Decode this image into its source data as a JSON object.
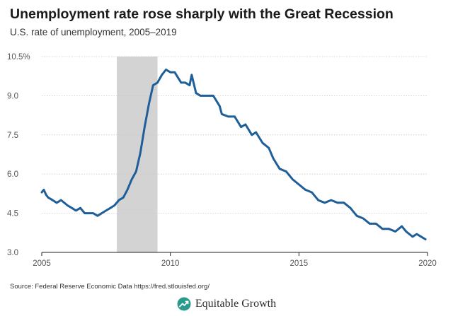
{
  "title": "Unemployment rate rose sharply with the Great Recession",
  "subtitle": "U.S. rate of unemployment, 2005–2019",
  "source": "Source: Federal Reserve Economic Data https://fred.stlouisfed.org/",
  "brand": {
    "name": "Equitable Growth",
    "icon": "growth-arrow-logo-icon",
    "color": "#2a9a8c"
  },
  "colors": {
    "line": "#1f5f99",
    "recession": "#d3d3d3",
    "grid": "#c9c9c9"
  },
  "chart_data": {
    "type": "line",
    "title": "Unemployment rate rose sharply with the Great Recession",
    "xlabel": "",
    "ylabel": "",
    "xlim": [
      2005,
      2020
    ],
    "ylim": [
      3.0,
      10.5
    ],
    "x_ticks": [
      2005,
      2010,
      2015,
      2020
    ],
    "y_ticks": [
      3.0,
      4.5,
      6.0,
      7.5,
      9.0,
      10.5
    ],
    "y_tick_labels": [
      "3.0",
      "4.5",
      "6.0",
      "7.5",
      "9.0",
      "10.5%"
    ],
    "grid": "horizontal",
    "recession_band": [
      2007.92,
      2009.5
    ],
    "series": [
      {
        "name": "",
        "x": [
          2005.0,
          2005.08,
          2005.17,
          2005.25,
          2005.42,
          2005.58,
          2005.75,
          2006.0,
          2006.17,
          2006.33,
          2006.5,
          2006.67,
          2006.83,
          2007.0,
          2007.17,
          2007.33,
          2007.5,
          2007.67,
          2007.83,
          2008.0,
          2008.17,
          2008.33,
          2008.5,
          2008.67,
          2008.83,
          2009.0,
          2009.17,
          2009.33,
          2009.5,
          2009.67,
          2009.83,
          2010.0,
          2010.17,
          2010.42,
          2010.58,
          2010.75,
          2010.83,
          2011.0,
          2011.17,
          2011.42,
          2011.67,
          2011.92,
          2012.0,
          2012.25,
          2012.5,
          2012.75,
          2012.92,
          2013.17,
          2013.33,
          2013.58,
          2013.83,
          2014.0,
          2014.25,
          2014.5,
          2014.75,
          2015.0,
          2015.25,
          2015.5,
          2015.75,
          2016.0,
          2016.25,
          2016.5,
          2016.75,
          2017.0,
          2017.25,
          2017.5,
          2017.75,
          2018.0,
          2018.25,
          2018.5,
          2018.75,
          2019.0,
          2019.17,
          2019.42,
          2019.58,
          2019.75,
          2019.92
        ],
        "values": [
          5.3,
          5.4,
          5.2,
          5.1,
          5.0,
          4.9,
          5.0,
          4.8,
          4.7,
          4.6,
          4.7,
          4.5,
          4.5,
          4.5,
          4.4,
          4.5,
          4.6,
          4.7,
          4.8,
          5.0,
          5.1,
          5.4,
          5.8,
          6.1,
          6.8,
          7.8,
          8.7,
          9.4,
          9.5,
          9.8,
          10.0,
          9.9,
          9.9,
          9.5,
          9.5,
          9.4,
          9.8,
          9.1,
          9.0,
          9.0,
          9.0,
          8.6,
          8.3,
          8.2,
          8.2,
          7.8,
          7.9,
          7.5,
          7.6,
          7.2,
          7.0,
          6.6,
          6.2,
          6.1,
          5.8,
          5.6,
          5.4,
          5.3,
          5.0,
          4.9,
          5.0,
          4.9,
          4.9,
          4.7,
          4.4,
          4.3,
          4.1,
          4.1,
          3.9,
          3.9,
          3.8,
          4.0,
          3.8,
          3.6,
          3.7,
          3.6,
          3.5
        ]
      }
    ]
  }
}
